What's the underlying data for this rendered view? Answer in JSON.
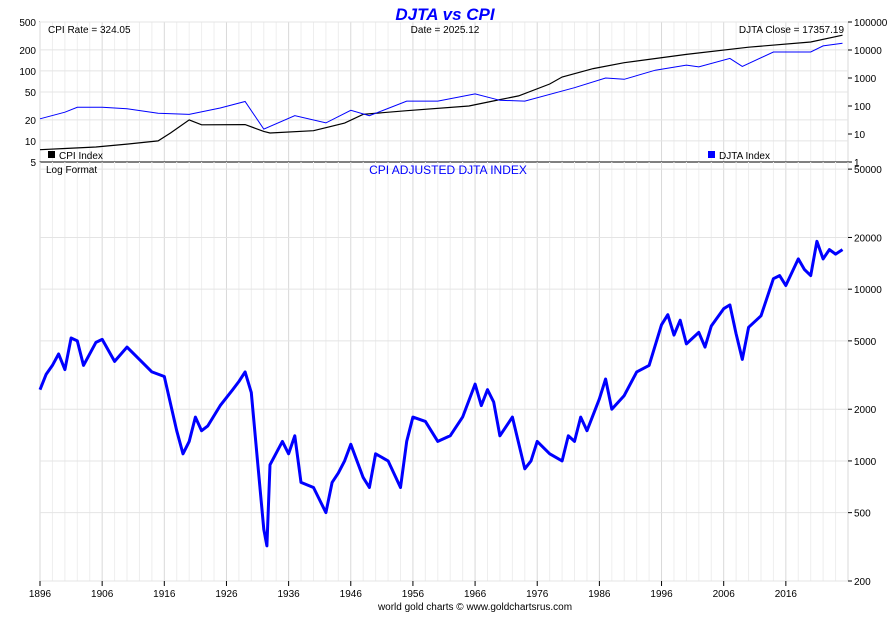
{
  "chart_data": [
    {
      "panel": "top",
      "type": "line",
      "title": "DJTA vs CPI",
      "left_axis": {
        "scale": "log",
        "range": [
          5,
          500
        ],
        "ticks": [
          5,
          10,
          20,
          50,
          100,
          200,
          500
        ]
      },
      "right_axis": {
        "scale": "log",
        "range": [
          1,
          100000
        ],
        "ticks": [
          1,
          10,
          100,
          1000,
          10000,
          100000
        ]
      },
      "x_axis": {
        "range": [
          1896,
          2026
        ]
      },
      "info": {
        "cpi_rate": "CPI Rate = 324.05",
        "date": "Date = 2025.12",
        "djta_close": "DJTA Close = 17357.19"
      },
      "legend": [
        {
          "name": "CPI Index",
          "color": "#000000",
          "placement": "bottom-left"
        },
        {
          "name": "DJTA Index",
          "color": "#0000ff",
          "placement": "bottom-right"
        }
      ],
      "series": [
        {
          "name": "CPI Index",
          "axis": "left",
          "color": "#000000",
          "x": [
            1896,
            1900,
            1905,
            1910,
            1915,
            1917,
            1920,
            1922,
            1929,
            1932,
            1933,
            1940,
            1945,
            1948,
            1955,
            1965,
            1970,
            1973,
            1978,
            1980,
            1985,
            1990,
            2000,
            2010,
            2020,
            2025.12
          ],
          "y": [
            7.5,
            7.8,
            8.2,
            9.0,
            10.0,
            13.0,
            20.0,
            17.0,
            17.1,
            13.7,
            13.0,
            14.0,
            18.0,
            24.0,
            27.0,
            31.5,
            39.0,
            44.0,
            65.0,
            82.0,
            108.0,
            131.0,
            172.0,
            218.0,
            259.0,
            324.05
          ]
        },
        {
          "name": "DJTA Index",
          "axis": "right",
          "color": "#0000ff",
          "x": [
            1896,
            1900,
            1902,
            1906,
            1910,
            1915,
            1920,
            1925,
            1929,
            1932,
            1937,
            1942,
            1946,
            1949,
            1955,
            1960,
            1966,
            1970,
            1974,
            1982,
            1987,
            1990,
            1995,
            2000,
            2002,
            2007,
            2009,
            2014,
            2020,
            2022,
            2025.12
          ],
          "y": [
            35,
            60,
            90,
            90,
            80,
            55,
            50,
            85,
            145,
            15,
            45,
            25,
            70,
            45,
            150,
            150,
            270,
            160,
            150,
            450,
            1000,
            900,
            1900,
            2900,
            2500,
            5000,
            2600,
            8500,
            8500,
            14000,
            17357.19
          ]
        }
      ]
    },
    {
      "panel": "bottom",
      "type": "line",
      "title": "CPI ADJUSTED DJTA INDEX",
      "scale_note": "Log Format",
      "y_axis": {
        "scale": "log",
        "range": [
          200,
          55000
        ],
        "ticks": [
          200,
          500,
          1000,
          2000,
          5000,
          10000,
          20000,
          50000
        ]
      },
      "x_axis": {
        "range": [
          1896,
          2026
        ],
        "ticks": [
          1896,
          1906,
          1916,
          1926,
          1936,
          1946,
          1956,
          1966,
          1976,
          1986,
          1996,
          2006,
          2016
        ]
      },
      "series": [
        {
          "name": "CPI adjusted DJTA",
          "color": "#0000ff",
          "x": [
            1896,
            1897,
            1898,
            1899,
            1900,
            1901,
            1902,
            1903,
            1905,
            1906,
            1908,
            1910,
            1912,
            1914,
            1916,
            1918,
            1919,
            1920,
            1921,
            1922,
            1923,
            1925,
            1927,
            1928,
            1929,
            1930,
            1931,
            1932,
            1932.5,
            1933,
            1935,
            1936,
            1937,
            1938,
            1940,
            1942,
            1943,
            1944,
            1945,
            1946,
            1948,
            1949,
            1950,
            1952,
            1954,
            1955,
            1956,
            1958,
            1960,
            1962,
            1964,
            1966,
            1967,
            1968,
            1969,
            1970,
            1972,
            1974,
            1975,
            1976,
            1978,
            1980,
            1981,
            1982,
            1983,
            1984,
            1986,
            1987,
            1988,
            1990,
            1992,
            1994,
            1996,
            1997,
            1998,
            1999,
            2000,
            2002,
            2003,
            2004,
            2006,
            2007,
            2008,
            2009,
            2010,
            2012,
            2014,
            2015,
            2016,
            2018,
            2019,
            2020,
            2021,
            2022,
            2023,
            2024,
            2025.12
          ],
          "y": [
            2600,
            3200,
            3600,
            4200,
            3400,
            5200,
            5000,
            3600,
            4900,
            5100,
            3800,
            4600,
            3900,
            3300,
            3100,
            1500,
            1100,
            1300,
            1800,
            1500,
            1600,
            2100,
            2600,
            2900,
            3300,
            2500,
            1000,
            400,
            320,
            950,
            1300,
            1100,
            1400,
            750,
            700,
            500,
            750,
            850,
            1000,
            1250,
            800,
            700,
            1100,
            1000,
            700,
            1300,
            1800,
            1700,
            1300,
            1400,
            1800,
            2800,
            2100,
            2600,
            2200,
            1400,
            1800,
            900,
            1000,
            1300,
            1100,
            1000,
            1400,
            1300,
            1800,
            1500,
            2300,
            3000,
            2000,
            2400,
            3300,
            3600,
            6200,
            7100,
            5400,
            6600,
            4800,
            5600,
            4600,
            6100,
            7700,
            8100,
            5500,
            3900,
            6000,
            7000,
            11500,
            12000,
            10500,
            15000,
            13000,
            12000,
            19000,
            15000,
            17000,
            16000,
            17000
          ]
        }
      ]
    }
  ],
  "footer": "world gold charts © www.goldchartsrus.com"
}
